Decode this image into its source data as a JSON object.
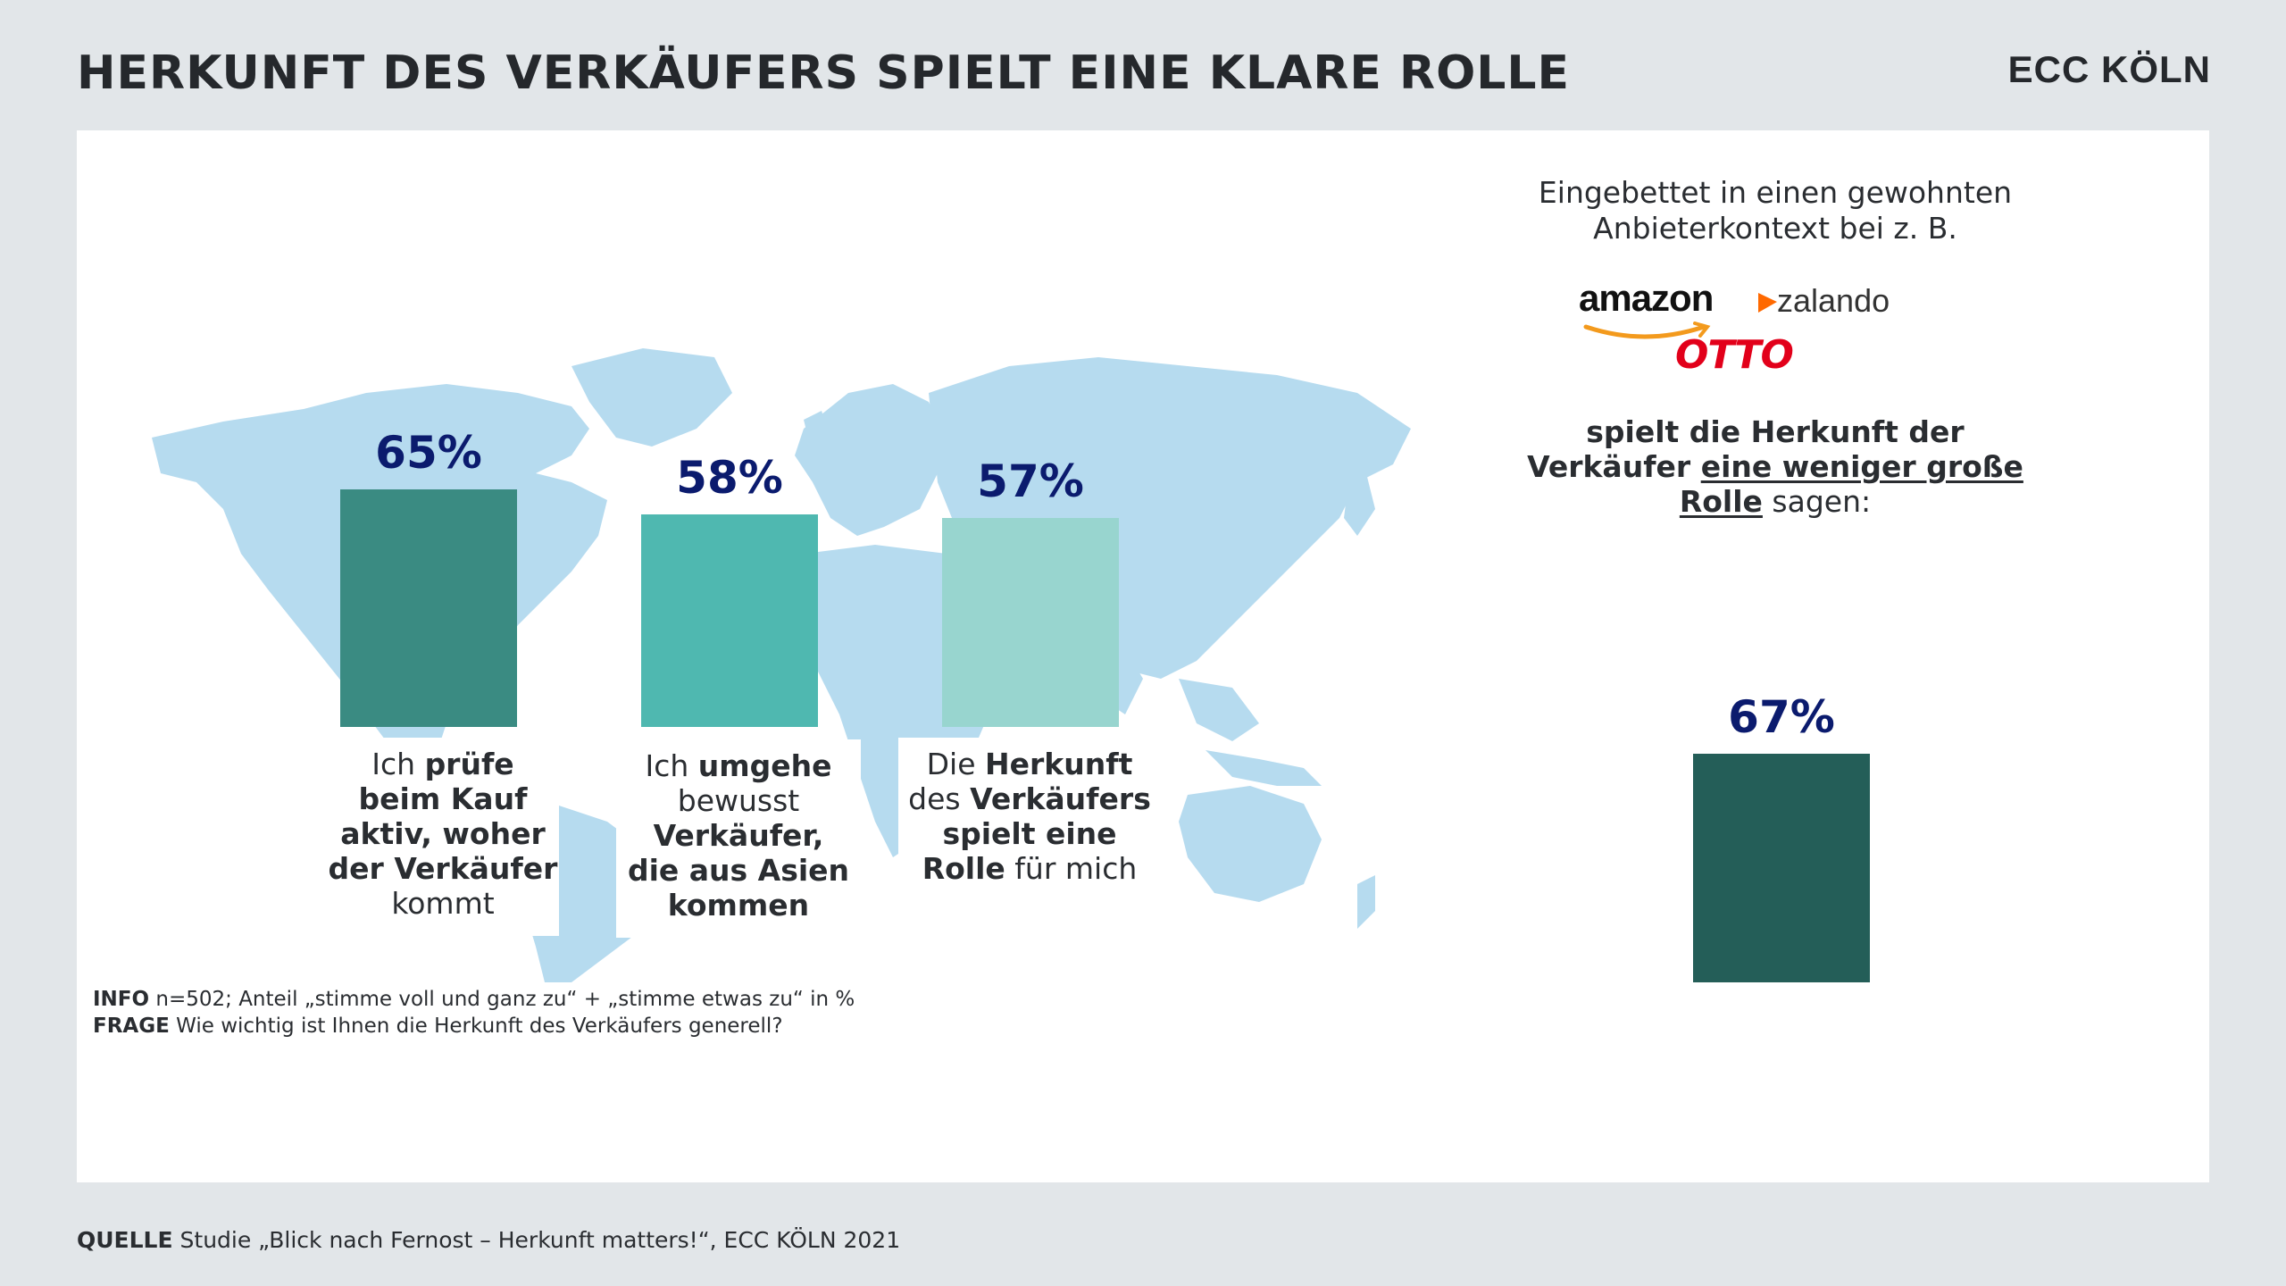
{
  "header": {
    "title": "HERKUNFT DES VERKÄUFERS SPIELT EINE KLARE ROLLE",
    "brand": "ECC KÖLN"
  },
  "colors": {
    "background": "#e2e6e9",
    "map": "#b6dbef",
    "bar1": "#3a8b82",
    "bar2": "#4fb8b0",
    "bar3": "#98d5cf",
    "bar_summary": "#245e58",
    "percent_text": "#0b1b6e"
  },
  "chart_data": [
    {
      "type": "bar",
      "categories": [
        "Ich prüfe beim Kauf aktiv, woher der Verkäufer kommt",
        "Ich umgehe bewusst Verkäufer, die aus Asien kommen",
        "Die Herkunft des Verkäufers spielt eine Rolle für mich"
      ],
      "values": [
        65,
        58,
        57
      ],
      "value_labels": [
        "65%",
        "58%",
        "57%"
      ],
      "ylim": [
        0,
        100
      ]
    },
    {
      "type": "bar",
      "categories": [
        "spielt die Herkunft der Verkäufer eine weniger große Rolle"
      ],
      "values": [
        67
      ],
      "value_labels": [
        "67%"
      ],
      "ylim": [
        0,
        100
      ]
    }
  ],
  "labels": {
    "bar1": {
      "t1": "Ich ",
      "b1": "prüfe",
      "b2": "beim Kauf",
      "b3": "aktiv, woher",
      "b4": "der Verkäufer",
      "t2": "kommt"
    },
    "bar2": {
      "t1": "Ich ",
      "b1": "umgehe",
      "t2": "bewusst",
      "b2": "Verkäufer,",
      "b3": "die aus Asien",
      "b4": "kommen"
    },
    "bar3": {
      "t1": "Die ",
      "b1": "Herkunft",
      "t2": "des ",
      "b2": "Verkäufers",
      "b3": "spielt eine",
      "b4": "Rolle",
      "t3": " für mich"
    }
  },
  "right": {
    "intro_line1": "Eingebettet in einen gewohnten",
    "intro_line2": "Anbieterkontext bei z. B.",
    "logos": {
      "amazon": "amazon",
      "zalando": "zalando",
      "otto": "OTTO"
    },
    "statement": {
      "l1": "spielt die Herkunft der",
      "l2a": "Verkäufer ",
      "l2u": "eine weniger große",
      "l3u": "Rolle",
      "l3b": " sagen:"
    }
  },
  "footnote": {
    "info_label": "INFO",
    "info_text": " n=502; Anteil „stimme voll und ganz zu“ + „stimme etwas zu“ in %",
    "frage_label": "FRAGE",
    "frage_text": " Wie wichtig ist Ihnen die Herkunft des Verkäufers generell?"
  },
  "source": {
    "label": "QUELLE",
    "text": " Studie „Blick nach Fernost – Herkunft matters!“, ECC KÖLN 2021"
  }
}
